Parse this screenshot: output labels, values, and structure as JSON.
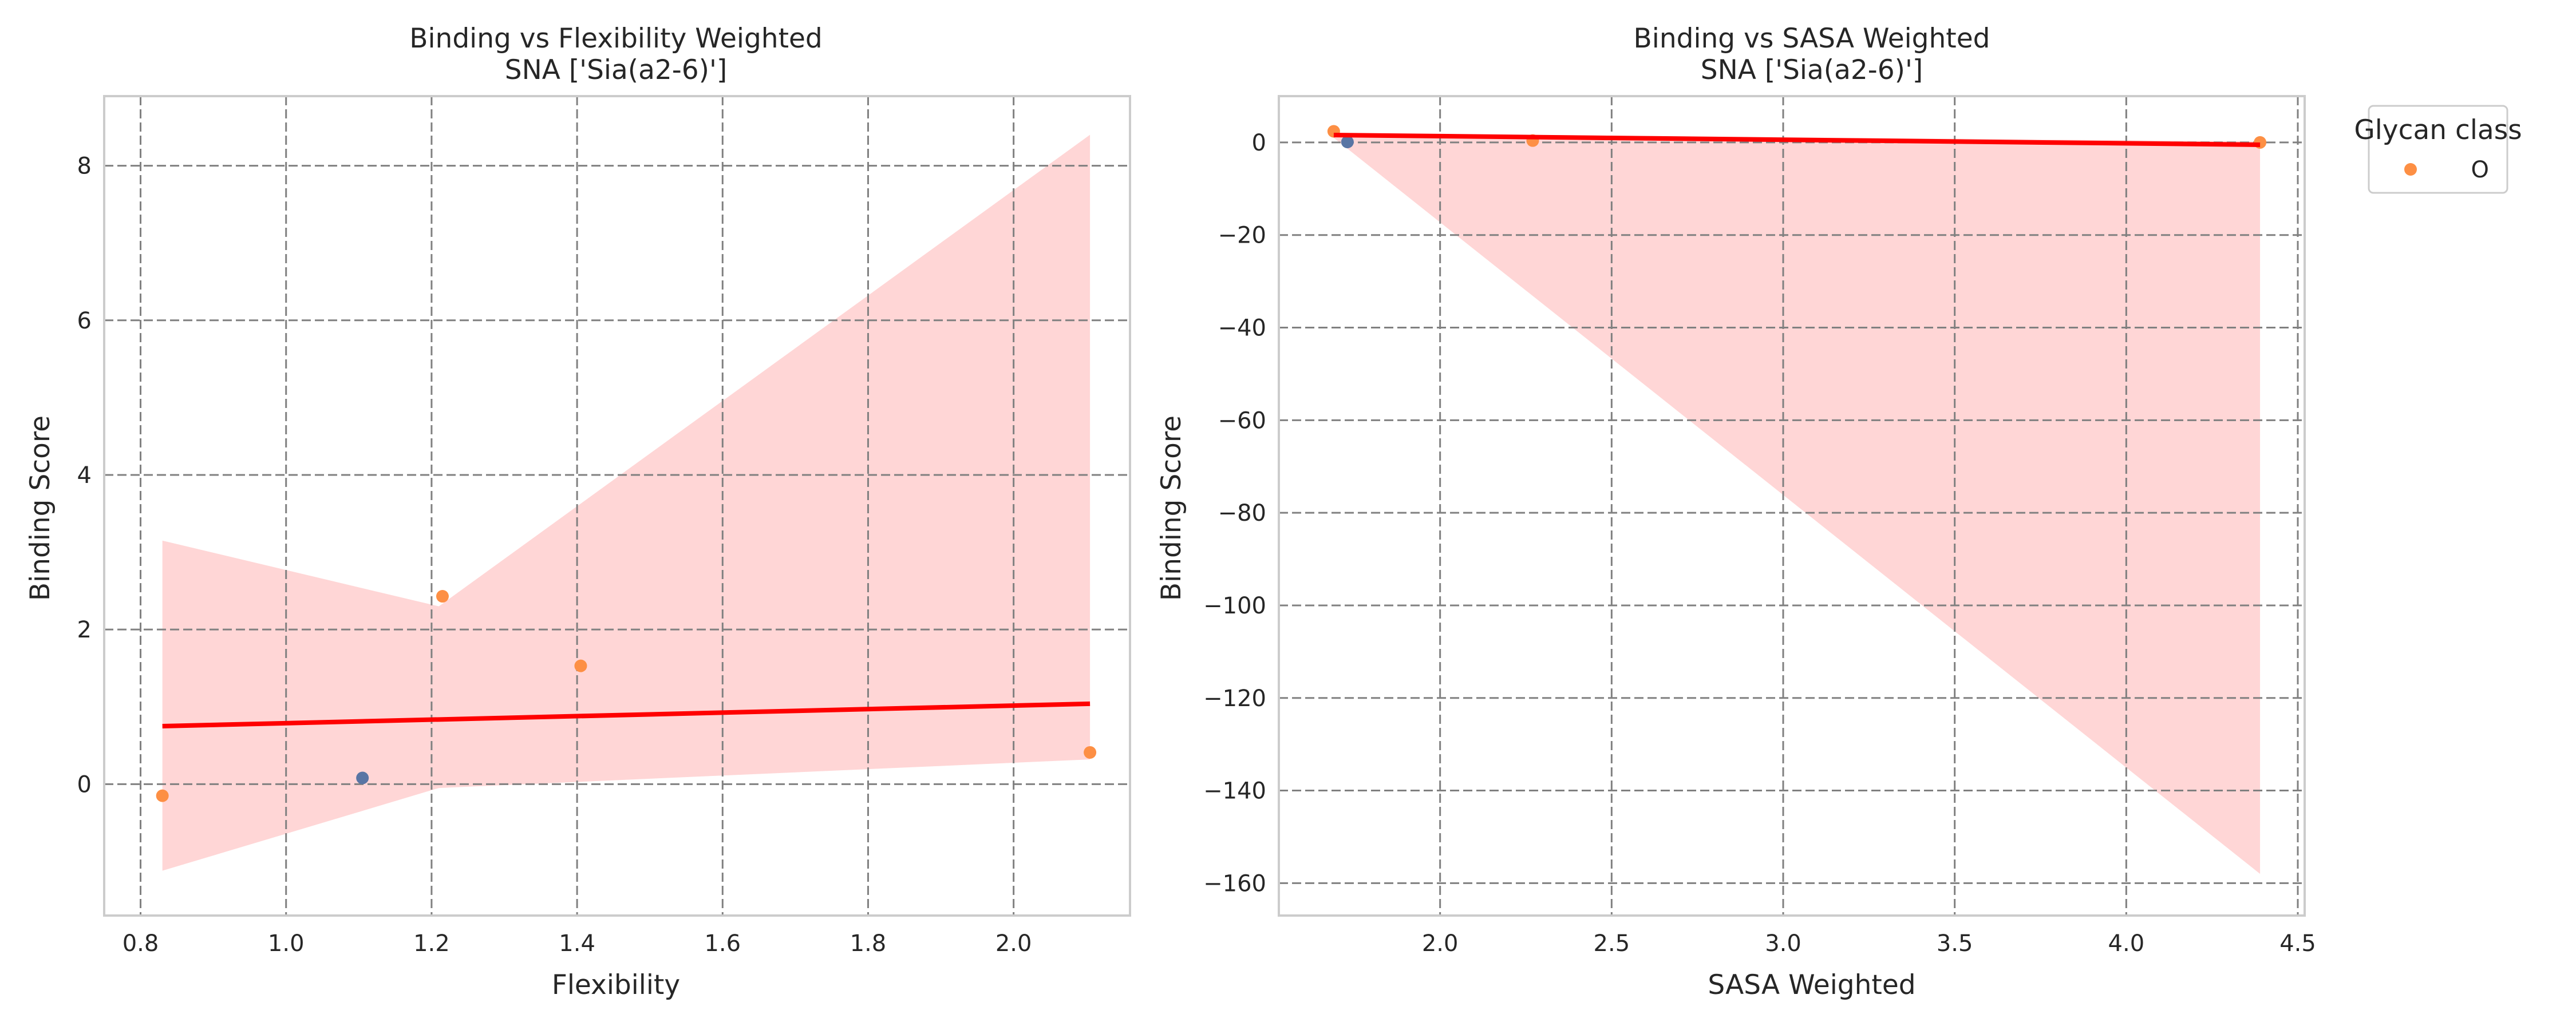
{
  "chart_data": [
    {
      "type": "scatter",
      "title_line1": "Binding vs Flexibility Weighted",
      "title_line2": "SNA ['Sia(a2-6)']",
      "xlabel": "Flexibility",
      "ylabel": "Binding Score",
      "xlim": [
        0.75,
        2.16
      ],
      "ylim": [
        -1.7,
        8.9
      ],
      "xticks": [
        0.8,
        1.0,
        1.2,
        1.4,
        1.6,
        1.8,
        2.0
      ],
      "xtick_labels": [
        "0.8",
        "1.0",
        "1.2",
        "1.4",
        "1.6",
        "1.8",
        "2.0"
      ],
      "yticks": [
        0,
        2,
        4,
        6,
        8
      ],
      "ytick_labels": [
        "0",
        "2",
        "4",
        "6",
        "8"
      ],
      "grid": true,
      "points": [
        {
          "x": 0.83,
          "y": -0.15,
          "class": "O"
        },
        {
          "x": 1.105,
          "y": 0.08,
          "class": "other"
        },
        {
          "x": 1.215,
          "y": 2.43,
          "class": "O"
        },
        {
          "x": 1.405,
          "y": 1.53,
          "class": "O"
        },
        {
          "x": 2.105,
          "y": 0.41,
          "class": "O"
        }
      ],
      "regression": {
        "x": [
          0.83,
          2.105
        ],
        "y": [
          0.75,
          1.04
        ]
      },
      "ci_band": {
        "x": [
          0.83,
          1.21,
          2.105
        ],
        "upper": [
          3.15,
          2.3,
          8.4
        ],
        "lower": [
          -1.12,
          -0.05,
          0.32
        ]
      }
    },
    {
      "type": "scatter",
      "title_line1": "Binding vs SASA Weighted",
      "title_line2": "SNA ['Sia(a2-6)']",
      "xlabel": "SASA Weighted",
      "ylabel": "Binding Score",
      "xlim": [
        1.53,
        4.52
      ],
      "ylim": [
        -167,
        10
      ],
      "xticks": [
        2.0,
        2.5,
        3.0,
        3.5,
        4.0,
        4.5
      ],
      "xtick_labels": [
        "2.0",
        "2.5",
        "3.0",
        "3.5",
        "4.0",
        "4.5"
      ],
      "yticks": [
        0,
        -20,
        -40,
        -60,
        -80,
        -100,
        -120,
        -140,
        -160
      ],
      "ytick_labels": [
        "0",
        "−20",
        "−40",
        "−60",
        "−80",
        "−100",
        "−120",
        "−140",
        "−160"
      ],
      "grid": true,
      "points": [
        {
          "x": 1.69,
          "y": 2.4,
          "class": "O"
        },
        {
          "x": 1.73,
          "y": 0.1,
          "class": "other"
        },
        {
          "x": 2.27,
          "y": 0.4,
          "class": "O"
        },
        {
          "x": 4.39,
          "y": 0.0,
          "class": "O"
        }
      ],
      "regression": {
        "x": [
          1.69,
          4.39
        ],
        "y": [
          1.6,
          -0.5
        ]
      },
      "ci_band": {
        "x": [
          1.69,
          4.39
        ],
        "upper": [
          2.0,
          0.2
        ],
        "lower": [
          1.0,
          -158
        ]
      }
    }
  ],
  "legend": {
    "title": "Glycan class",
    "entries": [
      {
        "label": "O",
        "color": "#fd8f44"
      }
    ]
  },
  "colors": {
    "class_O": "#fd8f44",
    "class_other": "#5975a4",
    "regression": "#ff0000",
    "ci_band": "#ffd6d6",
    "grid": "#808080",
    "spine": "#cccccc"
  }
}
